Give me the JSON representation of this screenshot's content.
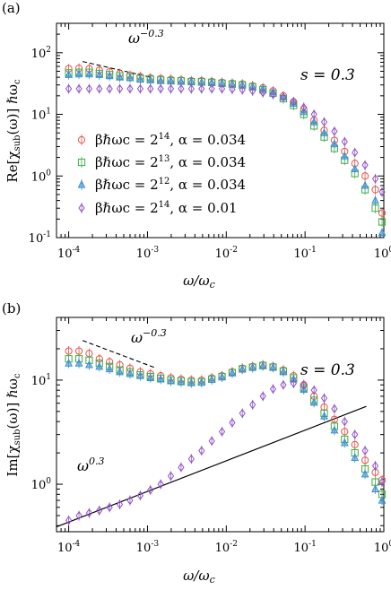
{
  "colors": {
    "s1": "#e8524a",
    "s2": "#3fae3f",
    "s3": "#3e8fd0",
    "s4": "#8e52c4",
    "axis": "#000000"
  },
  "chart_data": [
    {
      "type": "scatter",
      "panel_label": "(a)",
      "xlabel": "ω/ωc",
      "ylabel": "Re[χsub(ω)] ℏωc",
      "annotation": "s = 0.3",
      "guide_label": "ω−0.3",
      "xscale": "log",
      "yscale": "log",
      "xlim": [
        7e-05,
        1
      ],
      "ylim": [
        0.1,
        300
      ],
      "xticks": [
        "10-4",
        "10-3",
        "10-2",
        "10-1",
        "100"
      ],
      "yticks": [
        "10-1",
        "100",
        "101",
        "102"
      ],
      "legend_position": "left",
      "guide_line": {
        "x": [
          0.00015,
          0.0011
        ],
        "y": [
          72,
          40
        ]
      },
      "series": [
        {
          "name": "βℏωc = 2^14, α = 0.034",
          "marker": "circle",
          "x": [
            0.0001,
            0.000135,
            0.000182,
            0.000245,
            0.00033,
            0.000445,
            0.0006,
            0.00081,
            0.00109,
            0.00147,
            0.00198,
            0.00267,
            0.0036,
            0.00486,
            0.00655,
            0.00883,
            0.0119,
            0.016,
            0.0216,
            0.0292,
            0.0393,
            0.053,
            0.0715,
            0.0964,
            0.13,
            0.175,
            0.236,
            0.318,
            0.429,
            0.578,
            0.78,
            0.95
          ],
          "y": [
            55,
            56,
            55,
            52,
            49,
            46,
            43,
            41,
            39,
            38,
            37,
            36,
            35,
            35,
            34,
            33,
            32,
            31,
            29,
            27,
            24,
            20,
            16,
            12,
            8,
            5.5,
            3.8,
            2.5,
            1.6,
            1.0,
            0.6,
            0.25
          ]
        },
        {
          "name": "βℏωc = 2^13, α = 0.034",
          "marker": "square",
          "x": [
            0.0001,
            0.000135,
            0.000182,
            0.000245,
            0.00033,
            0.000445,
            0.0006,
            0.00081,
            0.00109,
            0.00147,
            0.00198,
            0.00267,
            0.0036,
            0.00486,
            0.00655,
            0.00883,
            0.0119,
            0.016,
            0.0216,
            0.0292,
            0.0393,
            0.053,
            0.0715,
            0.0964,
            0.13,
            0.175,
            0.236,
            0.318,
            0.429,
            0.578,
            0.78,
            0.95
          ],
          "y": [
            47,
            48,
            48,
            46,
            44,
            42,
            40,
            38,
            37,
            36,
            35,
            35,
            34,
            34,
            33,
            32,
            31,
            30,
            28,
            25,
            22,
            18,
            14,
            10,
            6.5,
            4.3,
            2.8,
            1.8,
            1.1,
            0.6,
            0.3,
            0.18
          ]
        },
        {
          "name": "βℏωc = 2^12, α = 0.034",
          "marker": "triangle",
          "x": [
            0.0001,
            0.000135,
            0.000182,
            0.000245,
            0.00033,
            0.000445,
            0.0006,
            0.00081,
            0.00109,
            0.00147,
            0.00198,
            0.00267,
            0.0036,
            0.00486,
            0.00655,
            0.00883,
            0.0119,
            0.016,
            0.0216,
            0.0292,
            0.0393,
            0.053,
            0.0715,
            0.0964,
            0.13,
            0.175,
            0.236,
            0.318,
            0.429,
            0.578,
            0.78,
            0.95
          ],
          "y": [
            44,
            45,
            45,
            44,
            42,
            40,
            39,
            37,
            36,
            35,
            35,
            34,
            34,
            33,
            33,
            32,
            31,
            30,
            28,
            26,
            23,
            19,
            15,
            11,
            7.5,
            5,
            3.3,
            2.1,
            1.3,
            0.7,
            0.4,
            0.12
          ]
        },
        {
          "name": "βℏωc = 2^14, α = 0.01",
          "marker": "diamond",
          "x": [
            0.0001,
            0.000135,
            0.000182,
            0.000245,
            0.00033,
            0.000445,
            0.0006,
            0.00081,
            0.00109,
            0.00147,
            0.00198,
            0.00267,
            0.0036,
            0.00486,
            0.00655,
            0.00883,
            0.0119,
            0.016,
            0.0216,
            0.0292,
            0.0393,
            0.053,
            0.0715,
            0.0964,
            0.13,
            0.175,
            0.236,
            0.318,
            0.429,
            0.578,
            0.78,
            0.95
          ],
          "y": [
            26,
            26,
            26,
            26,
            26,
            26,
            26,
            26,
            26,
            26,
            26,
            26,
            26,
            26,
            26,
            26,
            25.5,
            25,
            24,
            22.5,
            21,
            19,
            16,
            13,
            10,
            7.5,
            5.3,
            3.6,
            2.4,
            1.5,
            0.9,
            0.55
          ]
        }
      ]
    },
    {
      "type": "scatter",
      "panel_label": "(b)",
      "xlabel": "ω/ωc",
      "ylabel": "Im[χsub(ω)] ℏωc",
      "annotation": "s = 0.3",
      "guide_label": "ω−0.3",
      "line_label": "ω0.3",
      "xscale": "log",
      "yscale": "log",
      "xlim": [
        7e-05,
        1
      ],
      "ylim": [
        0.35,
        40
      ],
      "xticks": [
        "10-4",
        "10-3",
        "10-2",
        "10-1",
        "100"
      ],
      "yticks": [
        "100",
        "101"
      ],
      "guide_line": {
        "x": [
          0.00015,
          0.0013
        ],
        "y": [
          24,
          13
        ]
      },
      "power_line": {
        "x": [
          7e-05,
          0.6
        ],
        "y": [
          0.39,
          5.6
        ]
      },
      "series": [
        {
          "name": "βℏωc = 2^14, α = 0.034",
          "marker": "circle",
          "x": [
            0.0001,
            0.000135,
            0.000182,
            0.000245,
            0.00033,
            0.000445,
            0.0006,
            0.00081,
            0.00109,
            0.00147,
            0.00198,
            0.00267,
            0.0036,
            0.00486,
            0.00655,
            0.00883,
            0.0119,
            0.016,
            0.0216,
            0.0292,
            0.0393,
            0.053,
            0.0715,
            0.0964,
            0.13,
            0.175,
            0.236,
            0.318,
            0.429,
            0.578,
            0.78,
            0.95
          ],
          "y": [
            19,
            19,
            18,
            16,
            15,
            14,
            13,
            12,
            11.5,
            11,
            10.5,
            10.2,
            10,
            10,
            10.5,
            11,
            12,
            13,
            13.5,
            14,
            13.5,
            12.5,
            11,
            9,
            7,
            5.5,
            4.2,
            3.2,
            2.4,
            1.7,
            1.3,
            1.1
          ]
        },
        {
          "name": "βℏωc = 2^13, α = 0.034",
          "marker": "square",
          "x": [
            0.0001,
            0.000135,
            0.000182,
            0.000245,
            0.00033,
            0.000445,
            0.0006,
            0.00081,
            0.00109,
            0.00147,
            0.00198,
            0.00267,
            0.0036,
            0.00486,
            0.00655,
            0.00883,
            0.0119,
            0.016,
            0.0216,
            0.0292,
            0.0393,
            0.053,
            0.0715,
            0.0964,
            0.13,
            0.175,
            0.236,
            0.318,
            0.429,
            0.578,
            0.78,
            0.95
          ],
          "y": [
            16,
            16,
            15.5,
            14.5,
            13.5,
            12.5,
            12,
            11.2,
            10.8,
            10.4,
            10,
            9.8,
            9.6,
            9.6,
            10.2,
            10.8,
            11.8,
            12.8,
            13.3,
            13.8,
            13.3,
            12.2,
            10.5,
            8.4,
            6.4,
            4.8,
            3.6,
            2.7,
            2.0,
            1.4,
            1.05,
            0.8
          ]
        },
        {
          "name": "βℏωc = 2^12, α = 0.034",
          "marker": "triangle",
          "x": [
            0.0001,
            0.000135,
            0.000182,
            0.000245,
            0.00033,
            0.000445,
            0.0006,
            0.00081,
            0.00109,
            0.00147,
            0.00198,
            0.00267,
            0.0036,
            0.00486,
            0.00655,
            0.00883,
            0.0119,
            0.016,
            0.0216,
            0.0292,
            0.0393,
            0.053,
            0.0715,
            0.0964,
            0.13,
            0.175,
            0.236,
            0.318,
            0.429,
            0.578,
            0.78,
            0.95
          ],
          "y": [
            14.5,
            14.5,
            14,
            13.5,
            12.8,
            12,
            11.5,
            11,
            10.5,
            10.2,
            9.8,
            9.6,
            9.4,
            9.5,
            10.1,
            10.7,
            11.7,
            12.7,
            13.2,
            13.7,
            13.2,
            12,
            10.2,
            8.1,
            6.1,
            4.5,
            3.3,
            2.5,
            1.8,
            1.25,
            0.9,
            0.7
          ]
        },
        {
          "name": "βℏωc = 2^14, α = 0.01",
          "marker": "diamond",
          "x": [
            0.0001,
            0.000135,
            0.000182,
            0.000245,
            0.00033,
            0.000445,
            0.0006,
            0.00081,
            0.00109,
            0.00147,
            0.00198,
            0.00267,
            0.0036,
            0.00486,
            0.00655,
            0.00883,
            0.0119,
            0.016,
            0.0216,
            0.0292,
            0.0393,
            0.053,
            0.0715,
            0.0964,
            0.13,
            0.175,
            0.236,
            0.318,
            0.429,
            0.578,
            0.78,
            0.95
          ],
          "y": [
            0.45,
            0.5,
            0.53,
            0.56,
            0.6,
            0.64,
            0.7,
            0.78,
            0.88,
            1.0,
            1.2,
            1.45,
            1.75,
            2.1,
            2.6,
            3.2,
            3.9,
            4.8,
            5.8,
            7,
            8.2,
            9,
            9.3,
            9,
            8,
            6.7,
            5.3,
            4,
            3,
            2.1,
            1.5,
            1.05
          ]
        }
      ]
    }
  ]
}
